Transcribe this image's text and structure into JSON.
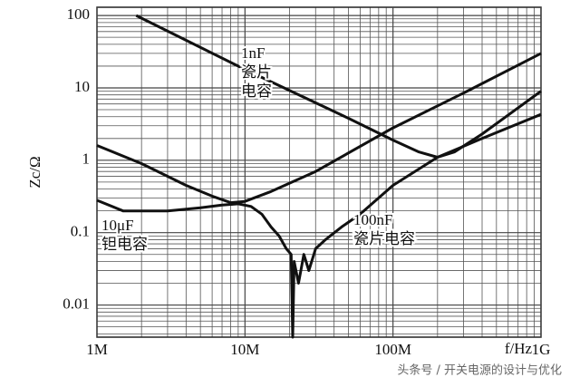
{
  "chart_data": {
    "type": "line",
    "y_label": "Zc/Ω",
    "x_label": "f/Hz",
    "log_x": true,
    "log_y": true,
    "grid": true,
    "xlim": [
      1000000,
      1000000000
    ],
    "xticks": [
      {
        "value": 1000000,
        "label": "1M"
      },
      {
        "value": 10000000,
        "label": "10M"
      },
      {
        "value": 100000000,
        "label": "100M"
      },
      {
        "value": 1000000000,
        "label": "1G"
      }
    ],
    "ylim": [
      0.0036,
      130
    ],
    "yticks": [
      0.01,
      0.1,
      1,
      10,
      100
    ],
    "series": [
      {
        "color": "#111111",
        "x": [
          1840000,
          10000000,
          50000000,
          100000000,
          150000000,
          200000000,
          260000000,
          400000000,
          1000000000
        ],
        "values": [
          100,
          18,
          3.8,
          1.9,
          1.3,
          1.1,
          1.3,
          2.3,
          9
        ]
      },
      {
        "color": "#111111",
        "x": [
          1000000,
          2000000,
          4000000,
          6000000,
          8000000,
          10000000,
          15000000,
          30000000,
          100000000,
          300000000,
          1000000000
        ],
        "values": [
          1.6,
          0.9,
          0.45,
          0.32,
          0.26,
          0.27,
          0.37,
          0.7,
          2.8,
          8.5,
          30
        ]
      },
      {
        "color": "#111111",
        "x": [
          1000000,
          1500000,
          2000000,
          3000000,
          5000000,
          7000000,
          9000000,
          11000000,
          13000000,
          15000000,
          17000000,
          19000000,
          20500000,
          21000000,
          21500000,
          23000000,
          25000000,
          27000000,
          30000000,
          35000000,
          45000000,
          60000000,
          100000000,
          200000000,
          400000000,
          1000000000
        ],
        "values": [
          0.28,
          0.2,
          0.2,
          0.2,
          0.22,
          0.24,
          0.25,
          0.23,
          0.18,
          0.12,
          0.09,
          0.06,
          0.05,
          0.0036,
          0.04,
          0.02,
          0.05,
          0.03,
          0.06,
          0.08,
          0.12,
          0.18,
          0.45,
          1.1,
          2,
          4.3
        ]
      }
    ],
    "annotations": [
      {
        "lines": [
          "1nF",
          "瓷片",
          "电容"
        ]
      },
      {
        "lines": [
          "10μF",
          "钽电容"
        ]
      },
      {
        "lines": [
          "100nF",
          "瓷片电容"
        ]
      }
    ],
    "watermark": "头条号 / 开关电源的设计与优化"
  }
}
